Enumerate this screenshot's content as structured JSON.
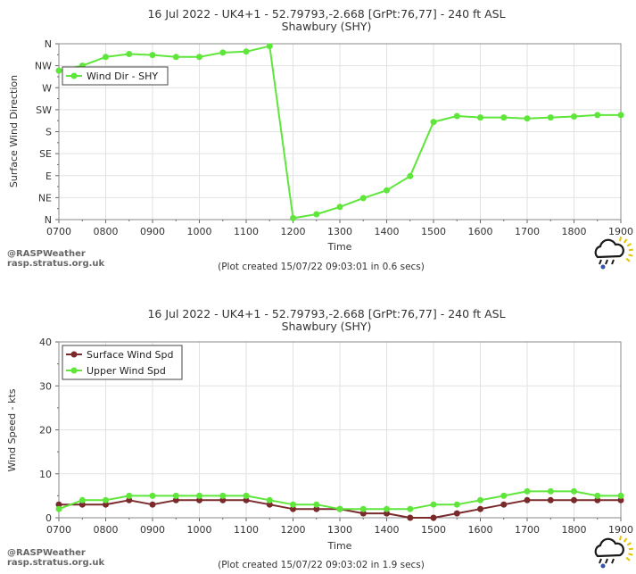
{
  "credit": {
    "name": "@RASPWeather",
    "site": "rasp.stratus.org.uk"
  },
  "colors": {
    "upper": "#5ee63a",
    "surface": "#7a2a2a",
    "icon": "#1a1a1a",
    "sun": "#e6c300"
  },
  "icons": {
    "logo": "rain-cloud-sun-icon"
  },
  "chart_data": [
    {
      "type": "line",
      "title": "16 Jul 2022 - UK4+1 - 52.79793,-2.668 [GrPt:76,77]  - 240 ft ASL",
      "subtitle": "Shawbury (SHY)",
      "xlabel": "Time",
      "ylabel": "Surface Wind Direction",
      "footer": "(Plot created 15/07/22 09:03:01 in 0.6 secs)",
      "x": [
        "0700",
        "0730",
        "0800",
        "0830",
        "0900",
        "0930",
        "1000",
        "1030",
        "1100",
        "1130",
        "1200",
        "1230",
        "1300",
        "1330",
        "1400",
        "1430",
        "1500",
        "1530",
        "1600",
        "1630",
        "1700",
        "1730",
        "1800",
        "1830",
        "1900"
      ],
      "x_ticks": [
        "0700",
        "0800",
        "0900",
        "1000",
        "1100",
        "1200",
        "1300",
        "1400",
        "1500",
        "1600",
        "1700",
        "1800",
        "1900"
      ],
      "y_ticks": [
        "N",
        "NE",
        "E",
        "SE",
        "S",
        "SW",
        "W",
        "NW",
        "N"
      ],
      "y_unit": "degrees",
      "ylim": [
        0,
        360
      ],
      "grid": true,
      "legend_position": "top-left",
      "series": [
        {
          "name": "Wind Dir - SHY",
          "color": "#5ee63a",
          "values": [
            305,
            315,
            333,
            339,
            337,
            333,
            333,
            342,
            344,
            355,
            3,
            11,
            26,
            44,
            60,
            89,
            200,
            212,
            209,
            209,
            207,
            209,
            211,
            214,
            214
          ]
        }
      ]
    },
    {
      "type": "line",
      "title": "16 Jul 2022 - UK4+1 - 52.79793,-2.668 [GrPt:76,77]  - 240 ft ASL",
      "subtitle": "Shawbury (SHY)",
      "xlabel": "Time",
      "ylabel": "Wind Speed - kts",
      "footer": "(Plot created 15/07/22 09:03:02 in 1.9 secs)",
      "x": [
        "0700",
        "0730",
        "0800",
        "0830",
        "0900",
        "0930",
        "1000",
        "1030",
        "1100",
        "1130",
        "1200",
        "1230",
        "1300",
        "1330",
        "1400",
        "1430",
        "1500",
        "1530",
        "1600",
        "1630",
        "1700",
        "1730",
        "1800",
        "1830",
        "1900"
      ],
      "x_ticks": [
        "0700",
        "0800",
        "0900",
        "1000",
        "1100",
        "1200",
        "1300",
        "1400",
        "1500",
        "1600",
        "1700",
        "1800",
        "1900"
      ],
      "y_ticks": [
        0,
        10,
        20,
        30,
        40
      ],
      "ylim": [
        0,
        40
      ],
      "grid": true,
      "legend_position": "top-left",
      "series": [
        {
          "name": "Surface Wind Spd",
          "color": "#7a2a2a",
          "values": [
            3,
            3,
            3,
            4,
            3,
            4,
            4,
            4,
            4,
            3,
            2,
            2,
            2,
            1,
            1,
            0,
            0,
            1,
            2,
            3,
            4,
            4,
            4,
            4,
            4
          ]
        },
        {
          "name": "Upper Wind Spd",
          "color": "#5ee63a",
          "values": [
            2,
            4,
            4,
            5,
            5,
            5,
            5,
            5,
            5,
            4,
            3,
            3,
            2,
            2,
            2,
            2,
            3,
            3,
            4,
            5,
            6,
            6,
            6,
            5,
            5
          ]
        }
      ]
    }
  ]
}
